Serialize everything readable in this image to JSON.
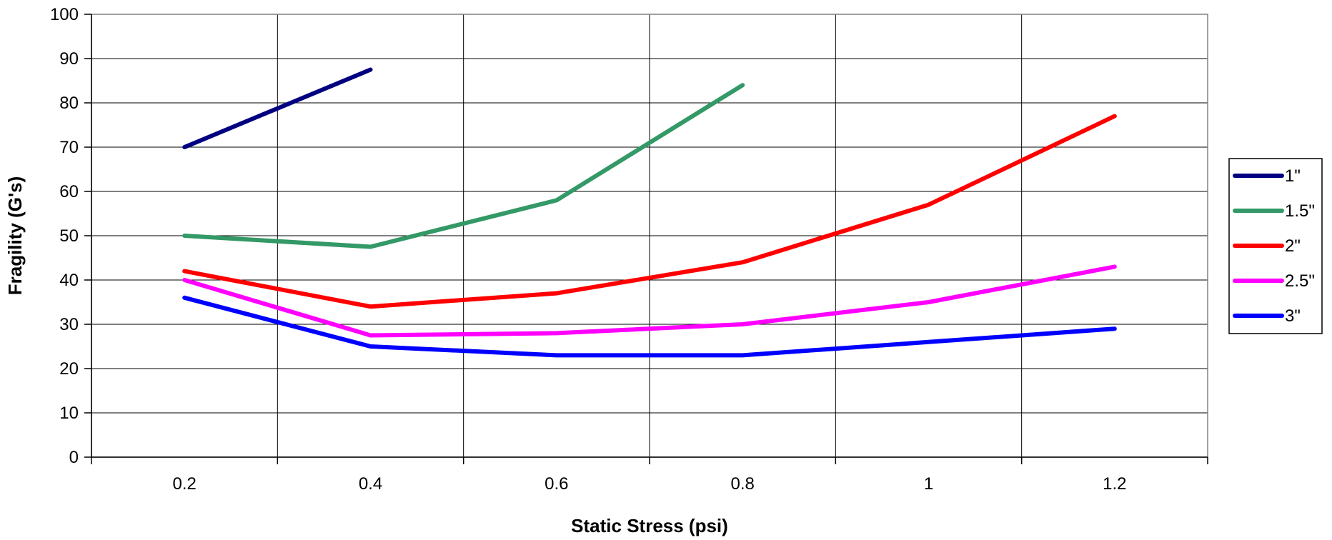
{
  "chart_data": {
    "type": "line",
    "title": "",
    "xlabel": "Static Stress (psi)",
    "ylabel": "Fragility (G's)",
    "x_ticks": [
      "0.2",
      "0.4",
      "0.6",
      "0.8",
      "1",
      "1.2"
    ],
    "x_values": [
      0.2,
      0.4,
      0.6,
      0.8,
      1.0,
      1.2
    ],
    "xlim": [
      0.1,
      1.3
    ],
    "ylim": [
      0,
      100
    ],
    "y_ticks": [
      "0",
      "10",
      "20",
      "30",
      "40",
      "50",
      "60",
      "70",
      "80",
      "90",
      "100"
    ],
    "grid": "on",
    "legend_position": "right",
    "series": [
      {
        "name": "1\"",
        "color": "#000080",
        "values": [
          70,
          87.5,
          null,
          null,
          null,
          null
        ]
      },
      {
        "name": "1.5\"",
        "color": "#339966",
        "values": [
          50,
          47.5,
          58,
          84,
          null,
          null
        ]
      },
      {
        "name": "2\"",
        "color": "#ff0000",
        "values": [
          42,
          34,
          37,
          44,
          57,
          77
        ]
      },
      {
        "name": "2.5\"",
        "color": "#ff00ff",
        "values": [
          40,
          27.5,
          28,
          30,
          35,
          43
        ]
      },
      {
        "name": "3\"",
        "color": "#0000ff",
        "values": [
          36,
          25,
          23,
          23,
          26,
          29
        ]
      }
    ]
  }
}
